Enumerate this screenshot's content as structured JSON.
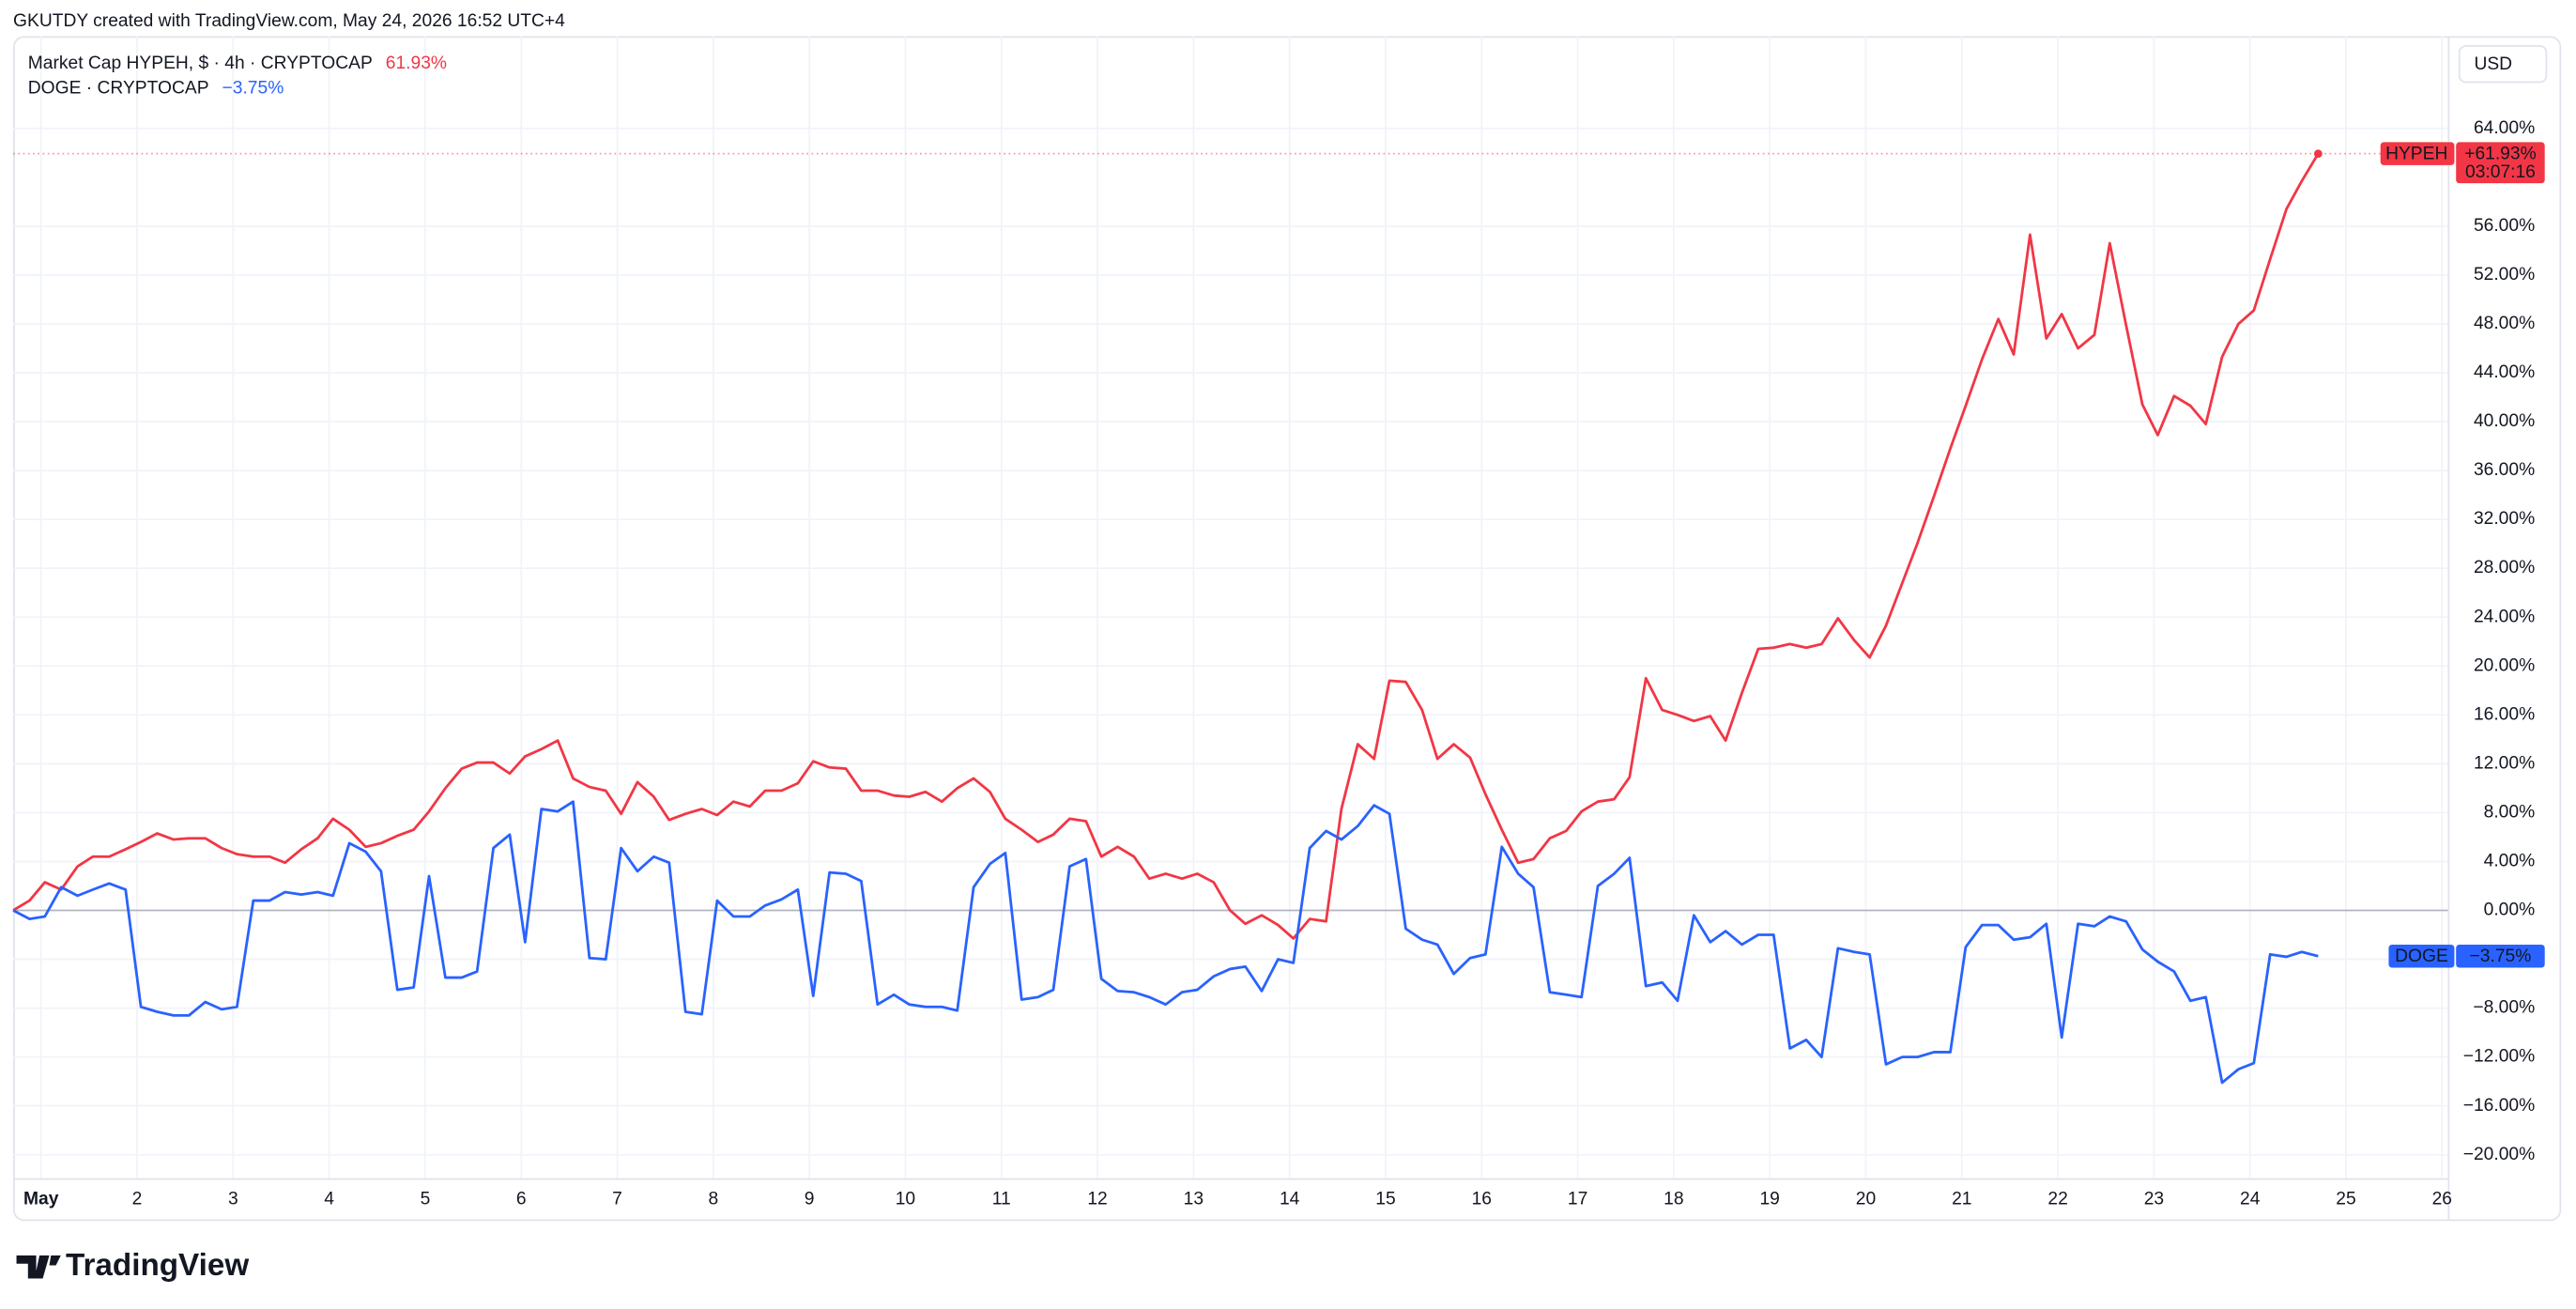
{
  "attribution": "GKUTDY created with TradingView.com, May 24, 2026 16:52 UTC+4",
  "logo_text": "TradingView",
  "chart_data": {
    "type": "line",
    "currency": "USD",
    "x": [
      0.71,
      0.88,
      1.04,
      1.21,
      1.38,
      1.54,
      1.71,
      1.88,
      2.04,
      2.21,
      2.38,
      2.54,
      2.71,
      2.88,
      3.04,
      3.21,
      3.38,
      3.54,
      3.71,
      3.88,
      4.04,
      4.21,
      4.38,
      4.54,
      4.71,
      4.88,
      5.04,
      5.21,
      5.38,
      5.54,
      5.71,
      5.88,
      6.04,
      6.21,
      6.38,
      6.54,
      6.71,
      6.88,
      7.04,
      7.21,
      7.38,
      7.54,
      7.71,
      7.88,
      8.04,
      8.21,
      8.38,
      8.54,
      8.71,
      8.88,
      9.04,
      9.21,
      9.38,
      9.54,
      9.71,
      9.88,
      10.04,
      10.21,
      10.38,
      10.54,
      10.71,
      10.88,
      11.04,
      11.21,
      11.38,
      11.54,
      11.71,
      11.88,
      12.04,
      12.21,
      12.38,
      12.54,
      12.71,
      12.88,
      13.04,
      13.21,
      13.38,
      13.54,
      13.71,
      13.88,
      14.04,
      14.21,
      14.38,
      14.54,
      14.71,
      14.88,
      15.04,
      15.21,
      15.38,
      15.54,
      15.71,
      15.88,
      16.04,
      16.21,
      16.38,
      16.54,
      16.71,
      16.88,
      17.04,
      17.21,
      17.38,
      17.54,
      17.71,
      17.88,
      18.04,
      18.21,
      18.38,
      18.54,
      18.71,
      18.88,
      19.04,
      19.21,
      19.38,
      19.54,
      19.71,
      19.88,
      20.04,
      20.21,
      20.38,
      20.54,
      20.71,
      20.88,
      21.04,
      21.21,
      21.38,
      21.54,
      21.71,
      21.88,
      22.04,
      22.21,
      22.38,
      22.54,
      22.71,
      22.88,
      23.04,
      23.21,
      23.38,
      23.54,
      23.71,
      23.88,
      24.04,
      24.21,
      24.38,
      24.54,
      24.71
    ],
    "series": [
      {
        "name": "Market Cap HYPEH, $ · 4h · CRYPTOCAP",
        "legend_value": "61.93%",
        "tag_label": "HYPEH",
        "tag_value": "+61.93%",
        "countdown": "03:07:16",
        "color": "#f23645",
        "price_line": true,
        "end_dot": true,
        "values": [
          0,
          0.8,
          2.3,
          1.7,
          3.6,
          4.4,
          4.4,
          5.0,
          5.6,
          6.3,
          5.8,
          5.9,
          5.9,
          5.1,
          4.6,
          4.4,
          4.4,
          3.9,
          5.0,
          5.9,
          7.5,
          6.6,
          5.2,
          5.5,
          6.1,
          6.6,
          8.1,
          10.0,
          11.6,
          12.1,
          12.1,
          11.2,
          12.6,
          13.2,
          13.9,
          10.8,
          10.1,
          9.8,
          7.9,
          10.5,
          9.3,
          7.4,
          7.9,
          8.3,
          7.8,
          8.9,
          8.5,
          9.8,
          9.8,
          10.4,
          12.2,
          11.7,
          11.6,
          9.8,
          9.8,
          9.4,
          9.3,
          9.7,
          8.9,
          10.0,
          10.8,
          9.7,
          7.5,
          6.6,
          5.6,
          6.2,
          7.5,
          7.3,
          4.4,
          5.2,
          4.4,
          2.6,
          3.0,
          2.6,
          3.0,
          2.3,
          0,
          -1.1,
          -0.4,
          -1.2,
          -2.3,
          -0.7,
          -0.9,
          8.3,
          13.6,
          12.4,
          18.8,
          18.7,
          16.4,
          12.4,
          13.6,
          12.5,
          9.5,
          6.6,
          3.9,
          4.2,
          5.9,
          6.5,
          8.1,
          8.9,
          9.1,
          10.9,
          19.0,
          16.4,
          16.0,
          15.5,
          15.9,
          13.9,
          17.8,
          21.4,
          21.5,
          21.8,
          21.5,
          21.8,
          23.9,
          22.1,
          20.7,
          23.3,
          26.8,
          30.1,
          33.9,
          37.8,
          41.3,
          45.1,
          48.4,
          45.5,
          55.3,
          46.8,
          48.8,
          46.0,
          47.1,
          54.6,
          47.9,
          41.4,
          38.9,
          42.1,
          41.3,
          39.8,
          45.3,
          48.0,
          49.1,
          53.3,
          57.4,
          59.7,
          61.93
        ]
      },
      {
        "name": "DOGE · CRYPTOCAP",
        "legend_value": "−3.75%",
        "tag_label": "DOGE",
        "tag_value": "−3.75%",
        "color": "#2962ff",
        "price_line": false,
        "end_dot": false,
        "values": [
          0,
          -0.7,
          -0.5,
          1.9,
          1.2,
          1.7,
          2.2,
          1.7,
          -7.9,
          -8.3,
          -8.6,
          -8.6,
          -7.5,
          -8.1,
          -7.9,
          0.8,
          0.8,
          1.5,
          1.3,
          1.5,
          1.2,
          5.5,
          4.8,
          3.2,
          -6.5,
          -6.3,
          2.8,
          -5.5,
          -5.5,
          -5.0,
          5.1,
          6.2,
          -2.6,
          8.3,
          8.1,
          8.9,
          -3.9,
          -4.0,
          5.1,
          3.2,
          4.4,
          3.9,
          -8.3,
          -8.5,
          0.8,
          -0.5,
          -0.5,
          0.4,
          0.9,
          1.7,
          -7.0,
          3.1,
          3.0,
          2.4,
          -7.7,
          -6.9,
          -7.7,
          -7.9,
          -7.9,
          -8.2,
          1.9,
          3.8,
          4.7,
          -7.3,
          -7.1,
          -6.5,
          3.6,
          4.2,
          -5.6,
          -6.6,
          -6.7,
          -7.1,
          -7.7,
          -6.7,
          -6.5,
          -5.4,
          -4.8,
          -4.6,
          -6.6,
          -4.0,
          -4.3,
          5.1,
          6.5,
          5.8,
          6.9,
          8.6,
          7.9,
          -1.5,
          -2.4,
          -2.8,
          -5.2,
          -3.9,
          -3.6,
          5.2,
          3.0,
          1.9,
          -6.7,
          -6.9,
          -7.1,
          2.0,
          3.0,
          4.3,
          -6.2,
          -5.9,
          -7.4,
          -0.4,
          -2.6,
          -1.7,
          -2.8,
          -2.0,
          -2.0,
          -11.3,
          -10.6,
          -12.0,
          -3.1,
          -3.4,
          -3.6,
          -12.6,
          -12.0,
          -12.0,
          -11.6,
          -11.6,
          -3.0,
          -1.2,
          -1.2,
          -2.4,
          -2.2,
          -1.1,
          -10.4,
          -1.1,
          -1.3,
          -0.5,
          -0.9,
          -3.2,
          -4.2,
          -5.0,
          -7.4,
          -7.1,
          -14.1,
          -13.0,
          -12.5,
          -3.6,
          -3.8,
          -3.4,
          -3.75
        ]
      }
    ],
    "xlim": [
      0.71,
      26.06
    ],
    "xticks": [
      {
        "value": 1,
        "label": "May"
      },
      2,
      3,
      4,
      5,
      6,
      7,
      8,
      9,
      10,
      11,
      12,
      13,
      14,
      15,
      16,
      17,
      18,
      19,
      20,
      21,
      22,
      23,
      24,
      25,
      26
    ],
    "ylim": [
      -21.92,
      71.55
    ],
    "yticks": [
      {
        "value": -20,
        "label": "−20.00%"
      },
      {
        "value": -16,
        "label": "−16.00%"
      },
      {
        "value": -12,
        "label": "−12.00%"
      },
      {
        "value": -8,
        "label": "−8.00%"
      },
      {
        "value": -4,
        "label": "−4.00%"
      },
      {
        "value": 0,
        "label": "0.00%"
      },
      {
        "value": 4,
        "label": "4.00%"
      },
      {
        "value": 8,
        "label": "8.00%"
      },
      {
        "value": 12,
        "label": "12.00%"
      },
      {
        "value": 16,
        "label": "16.00%"
      },
      {
        "value": 20,
        "label": "20.00%"
      },
      {
        "value": 24,
        "label": "24.00%"
      },
      {
        "value": 28,
        "label": "28.00%"
      },
      {
        "value": 32,
        "label": "32.00%"
      },
      {
        "value": 36,
        "label": "36.00%"
      },
      {
        "value": 40,
        "label": "40.00%"
      },
      {
        "value": 44,
        "label": "44.00%"
      },
      {
        "value": 48,
        "label": "48.00%"
      },
      {
        "value": 52,
        "label": "52.00%"
      },
      {
        "value": 56,
        "label": "56.00%"
      },
      {
        "value": 64,
        "label": "64.00%"
      }
    ],
    "grid": true
  }
}
